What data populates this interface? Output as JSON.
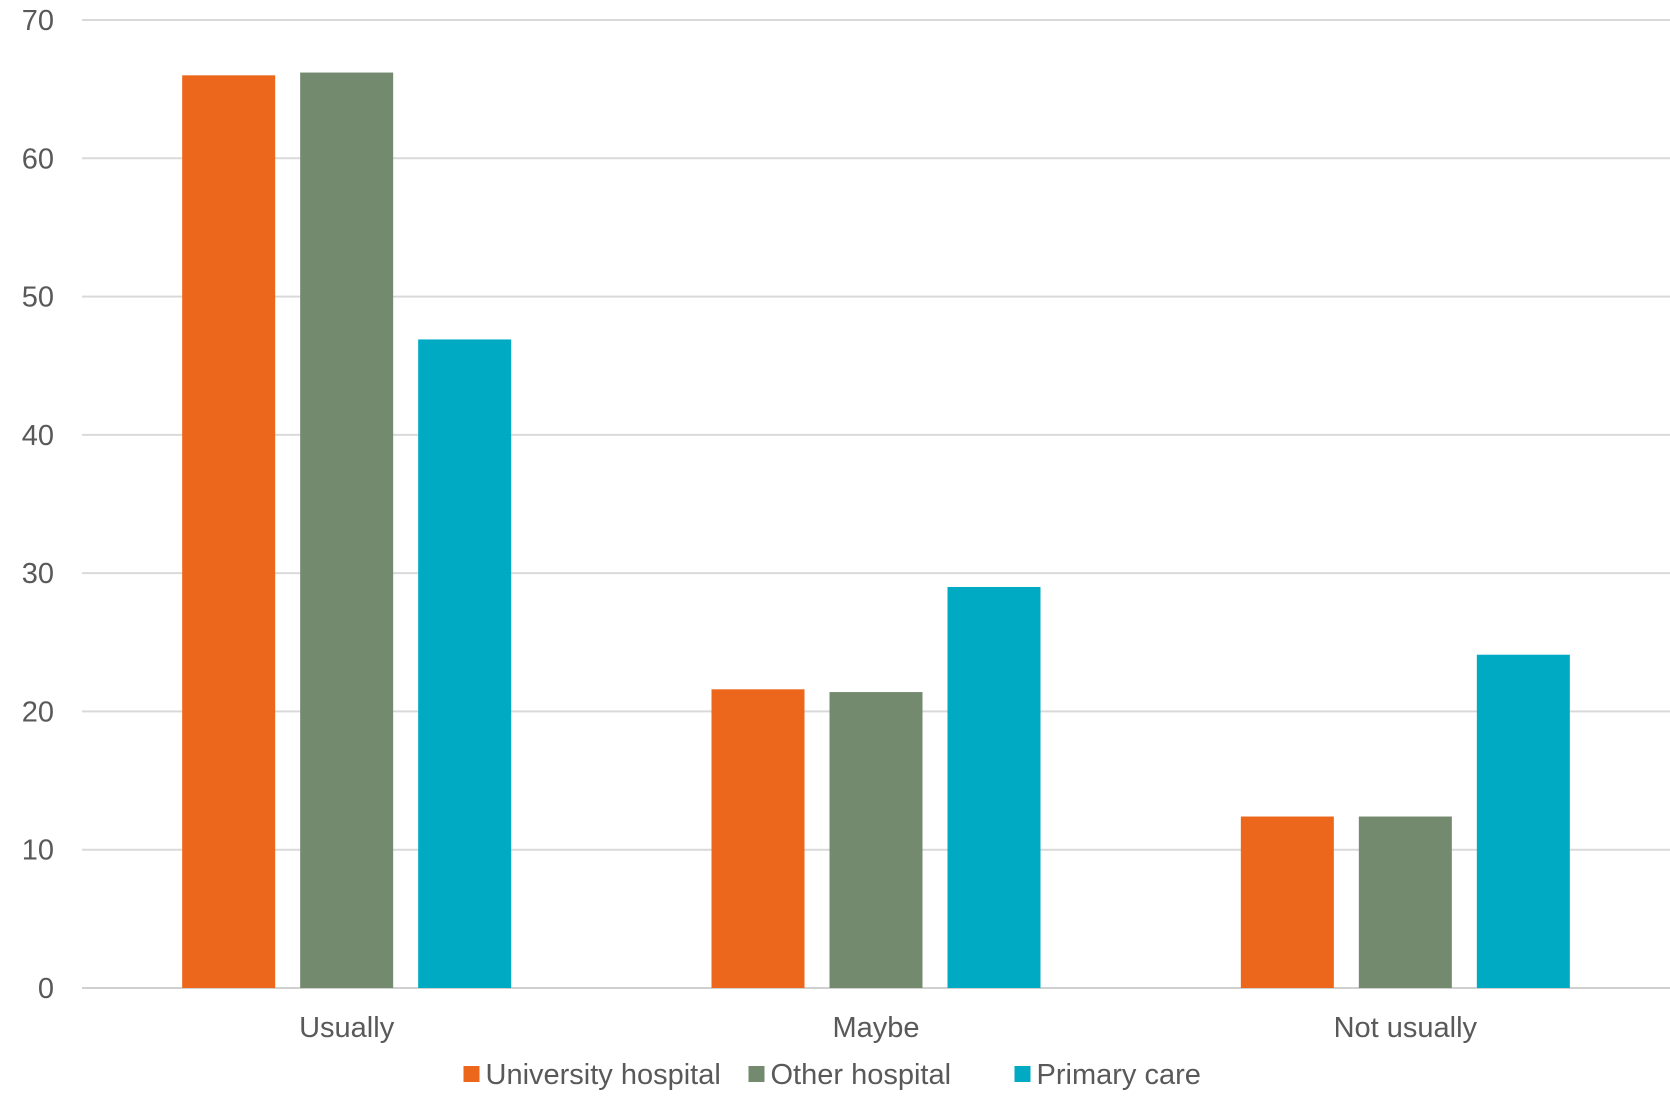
{
  "chart_data": {
    "type": "bar",
    "categories": [
      "Usually",
      "Maybe",
      "Not usually"
    ],
    "series": [
      {
        "name": "University hospital",
        "values": [
          66,
          21.6,
          12.4
        ],
        "color": "#ec671b"
      },
      {
        "name": "Other hospital",
        "values": [
          66.2,
          21.4,
          12.4
        ],
        "color": "#738a6f"
      },
      {
        "name": "Primary care",
        "values": [
          46.9,
          29,
          24.1
        ],
        "color": "#00aac2"
      }
    ],
    "ylim": [
      0,
      70
    ],
    "yticks": [
      0,
      10,
      20,
      30,
      40,
      50,
      60,
      70
    ],
    "grid": true,
    "legend_position": "bottom",
    "title": "",
    "xlabel": "",
    "ylabel": ""
  }
}
